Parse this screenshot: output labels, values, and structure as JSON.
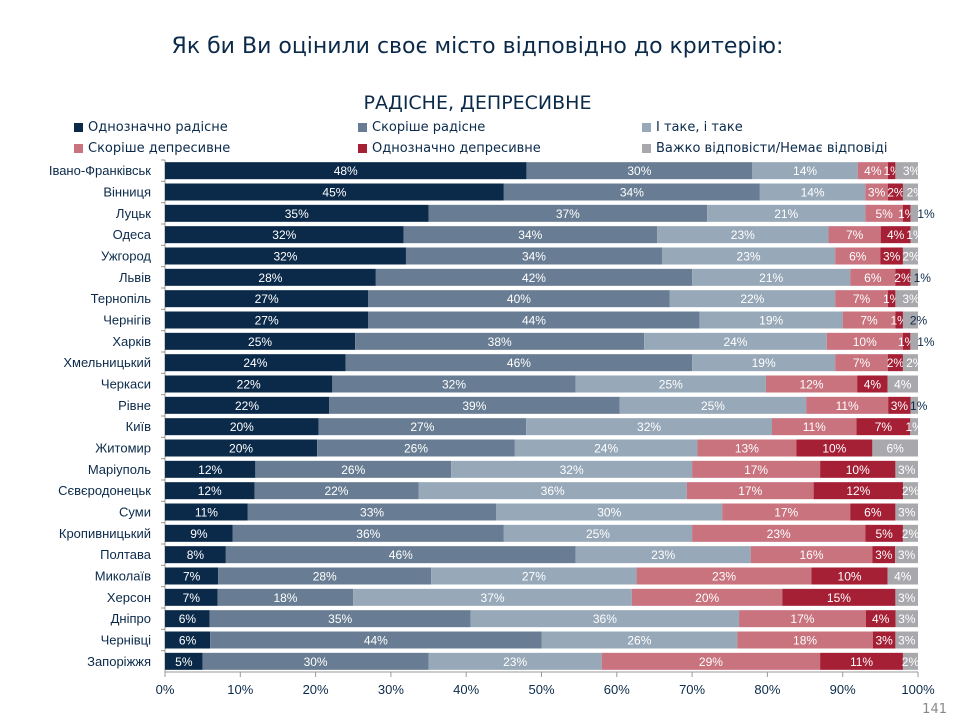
{
  "page": {
    "title": "Як би Ви оцінили своє місто відповідно до критерію:",
    "page_number": "141"
  },
  "chart_data": {
    "type": "bar",
    "orientation": "horizontal",
    "stacked": "100%",
    "title": "РАДІСНЕ, ДЕПРЕСИВНЕ",
    "legend_placement": "top",
    "xlim": [
      0,
      100
    ],
    "x_ticks": [
      "0%",
      "10%",
      "20%",
      "30%",
      "40%",
      "50%",
      "60%",
      "70%",
      "80%",
      "90%",
      "100%"
    ],
    "categories": [
      "Івано-Франківськ",
      "Вінниця",
      "Луцьк",
      "Одеса",
      "Ужгород",
      "Львів",
      "Тернопіль",
      "Чернігів",
      "Харків",
      "Хмельницький",
      "Черкаси",
      "Рівне",
      "Київ",
      "Житомир",
      "Маріуполь",
      "Сєвєродонецьк",
      "Суми",
      "Кропивницький",
      "Полтава",
      "Миколаїв",
      "Херсон",
      "Дніпро",
      "Чернівці",
      "Запоріжжя"
    ],
    "series": [
      {
        "name": "Однозначно радісне",
        "color": "#0b2a4a",
        "values": [
          48,
          45,
          35,
          32,
          32,
          28,
          27,
          27,
          25,
          24,
          22,
          22,
          20,
          20,
          12,
          12,
          11,
          9,
          8,
          7,
          7,
          6,
          6,
          5
        ]
      },
      {
        "name": "Скоріше радісне",
        "color": "#687d93",
        "values": [
          30,
          34,
          37,
          34,
          34,
          42,
          40,
          44,
          38,
          46,
          32,
          39,
          27,
          26,
          26,
          22,
          33,
          36,
          46,
          28,
          18,
          35,
          44,
          30
        ]
      },
      {
        "name": "І таке, і таке",
        "color": "#97a8b8",
        "values": [
          14,
          14,
          21,
          23,
          23,
          21,
          22,
          19,
          24,
          19,
          25,
          25,
          32,
          24,
          32,
          36,
          30,
          25,
          23,
          27,
          37,
          36,
          26,
          23
        ]
      },
      {
        "name": "Скоріше депресивне",
        "color": "#c8737e",
        "values": [
          4,
          3,
          5,
          7,
          6,
          6,
          7,
          7,
          10,
          7,
          12,
          11,
          11,
          13,
          17,
          17,
          17,
          23,
          16,
          23,
          20,
          17,
          18,
          29
        ]
      },
      {
        "name": "Однозначно депресивне",
        "color": "#a51f35",
        "values": [
          1,
          2,
          1,
          4,
          3,
          2,
          1,
          1,
          1,
          2,
          4,
          3,
          7,
          10,
          10,
          12,
          6,
          5,
          3,
          10,
          15,
          4,
          3,
          11
        ]
      },
      {
        "name": "Важко відповісти/Немає відповіді",
        "color": "#a9a9ad",
        "values": [
          3,
          2,
          1,
          1,
          2,
          1,
          3,
          2,
          1,
          2,
          4,
          1,
          1,
          6,
          3,
          2,
          3,
          2,
          3,
          4,
          3,
          3,
          3,
          2
        ]
      }
    ]
  }
}
